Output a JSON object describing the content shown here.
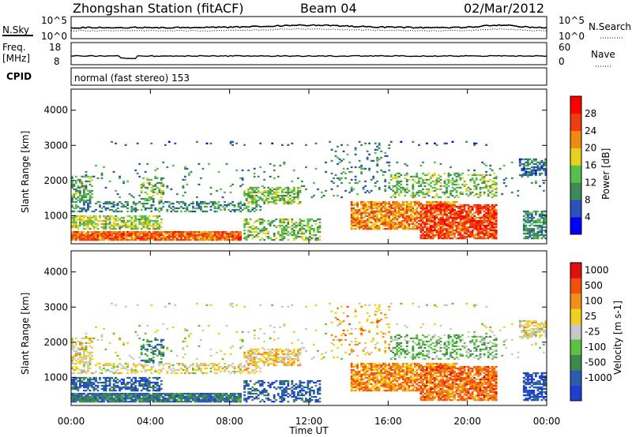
{
  "header": {
    "title": "Zhongshan Station (fitACF)",
    "beam": "Beam 04",
    "date": "02/Mar/2012"
  },
  "noise_panel": {
    "left_label": "N.Sky",
    "right_label": "N.Search",
    "left_ticks": [
      "10^5",
      "10^0"
    ],
    "right_ticks": [
      "10^5",
      "10^0"
    ]
  },
  "freq_panel": {
    "left_label_line1": "Freq.",
    "left_label_line2": "[MHz]",
    "left_ticks": [
      "18",
      "8"
    ],
    "right_label": "Nave",
    "right_ticks": [
      "60",
      "0"
    ]
  },
  "cpid": {
    "label": "CPID",
    "value": "normal (fast stereo) 153"
  },
  "chart_data": [
    {
      "type": "heatmap",
      "name": "Power",
      "ylabel": "Slant Range [km]",
      "y_ticks": [
        "1000",
        "2000",
        "3000",
        "4000"
      ],
      "ylim": [
        200,
        4600
      ],
      "colorbar_label": "Power [dB]",
      "colorbar_ticks": [
        "4",
        "8",
        "12",
        "16",
        "20",
        "24",
        "28"
      ],
      "colorbar_colors": [
        "#0000ff",
        "#2a52b8",
        "#3f8a5a",
        "#57c04a",
        "#e6d020",
        "#f08a10",
        "#f03d10",
        "#ff0000"
      ],
      "x_range": [
        0,
        24
      ]
    },
    {
      "type": "heatmap",
      "name": "Velocity",
      "ylabel": "Slant Range [km]",
      "y_ticks": [
        "1000",
        "2000",
        "3000",
        "4000"
      ],
      "ylim": [
        200,
        4600
      ],
      "colorbar_label": "Velocity [m s-1]",
      "colorbar_ticks": [
        "1000",
        "500",
        "100",
        "25",
        "-25",
        "-100",
        "-500",
        "-1000"
      ],
      "colorbar_colors": [
        "#1e3fd0",
        "#2d5cae",
        "#3d8a4a",
        "#5cc040",
        "#c8c8c8",
        "#f0d020",
        "#f0901a",
        "#f05010",
        "#e01010"
      ],
      "x_range": [
        0,
        24
      ]
    }
  ],
  "x_axis": {
    "label": "Time UT",
    "ticks": [
      "00:00",
      "04:00",
      "08:00",
      "12:00",
      "16:00",
      "20:00",
      "00:00"
    ]
  }
}
